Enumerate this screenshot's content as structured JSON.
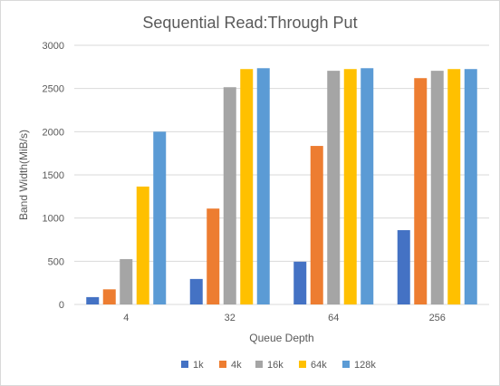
{
  "chart_data": {
    "type": "bar",
    "title": "Sequential Read:Through Put",
    "xlabel": "Queue Depth",
    "ylabel": "Band Width(MiB/s)",
    "ylim": [
      0,
      3000
    ],
    "yticks": [
      0,
      500,
      1000,
      1500,
      2000,
      2500,
      3000
    ],
    "categories": [
      "4",
      "32",
      "64",
      "256"
    ],
    "grid": true,
    "legend_position": "bottom",
    "series": [
      {
        "name": "1k",
        "color": "#4472c4",
        "values": [
          85,
          295,
          495,
          860
        ]
      },
      {
        "name": "4k",
        "color": "#ed7d31",
        "values": [
          175,
          1110,
          1835,
          2620
        ]
      },
      {
        "name": "16k",
        "color": "#a5a5a5",
        "values": [
          525,
          2515,
          2705,
          2705
        ]
      },
      {
        "name": "64k",
        "color": "#ffc000",
        "values": [
          1365,
          2725,
          2725,
          2725
        ]
      },
      {
        "name": "128k",
        "color": "#5b9bd5",
        "values": [
          2000,
          2735,
          2735,
          2725
        ]
      }
    ]
  }
}
